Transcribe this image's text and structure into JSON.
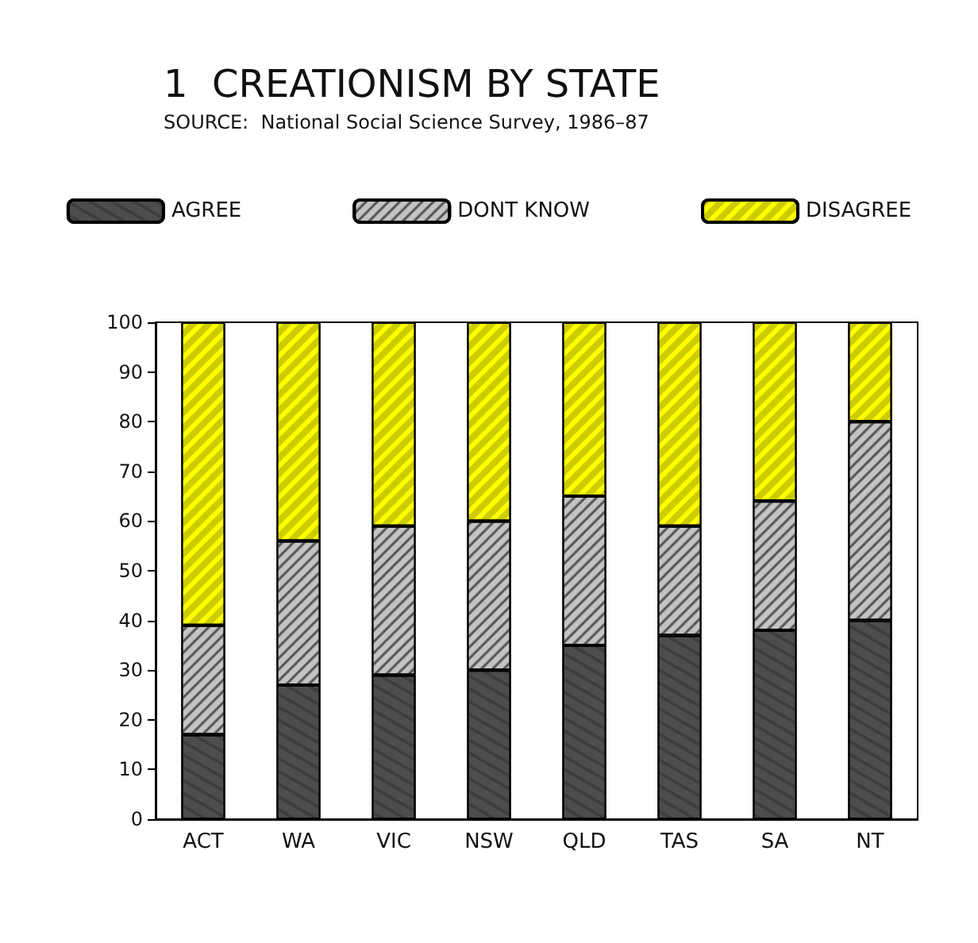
{
  "chart_data": {
    "type": "bar",
    "title": "1  CREATIONISM BY STATE",
    "subtitle": "SOURCE:  National Social Science Survey, 1986–87",
    "categories": [
      "ACT",
      "WA",
      "VIC",
      "NSW",
      "QLD",
      "TAS",
      "SA",
      "NT"
    ],
    "stacked": true,
    "series": [
      {
        "name": "AGREE",
        "color": "#4d4d4d",
        "values": [
          17,
          27,
          29,
          30,
          35,
          37,
          38,
          40
        ]
      },
      {
        "name": "DONT KNOW",
        "color": "#c4c4c4",
        "values": [
          22,
          29,
          30,
          30,
          30,
          22,
          26,
          40
        ]
      },
      {
        "name": "DISAGREE",
        "color": "#ffff00",
        "values": [
          61,
          44,
          41,
          40,
          35,
          41,
          36,
          20
        ]
      }
    ],
    "ylim": [
      0,
      100
    ],
    "yticks": [
      0,
      10,
      20,
      30,
      40,
      50,
      60,
      70,
      80,
      90,
      100
    ],
    "grid": false,
    "legend": "top"
  }
}
